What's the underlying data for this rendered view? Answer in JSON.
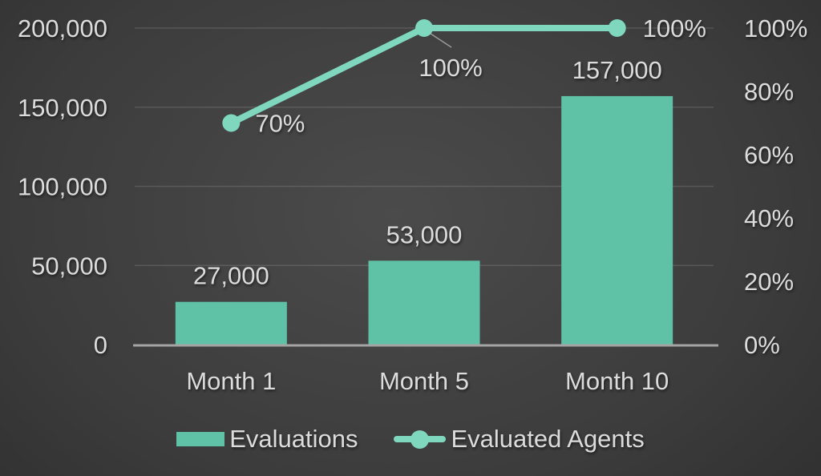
{
  "chart_data": {
    "type": "combo",
    "categories": [
      "Month 1",
      "Month 5",
      "Month 10"
    ],
    "series": [
      {
        "name": "Evaluations",
        "type": "bar",
        "axis": "left",
        "values": [
          27000,
          53000,
          157000
        ],
        "data_labels": [
          "27,000",
          "53,000",
          "157,000"
        ],
        "color": "#5fc2a6"
      },
      {
        "name": "Evaluated Agents",
        "type": "line",
        "axis": "right",
        "values": [
          70,
          100,
          100
        ],
        "data_labels": [
          "70%",
          "100%",
          "100%"
        ],
        "color": "#7fd8be"
      }
    ],
    "left_axis": {
      "min": 0,
      "max": 200000,
      "tick_interval": 50000,
      "tick_labels": [
        "0",
        "50,000",
        "100,000",
        "150,000",
        "200,000"
      ]
    },
    "right_axis": {
      "min": 0,
      "max": 100,
      "tick_interval": 20,
      "tick_labels": [
        "0%",
        "20%",
        "40%",
        "60%",
        "80%",
        "100%"
      ]
    },
    "grid": "horizontal",
    "legend_position": "bottom"
  },
  "colors": {
    "bar": "#5fc2a6",
    "line": "#7fd8be",
    "text": "#dcdcdc",
    "gridline": "rgba(255,255,255,0.13)",
    "axis_line": "#a4a4a4",
    "leader_line": "#9a9a9a",
    "background_center": "#4b4b4b",
    "background_edge": "#242424"
  }
}
